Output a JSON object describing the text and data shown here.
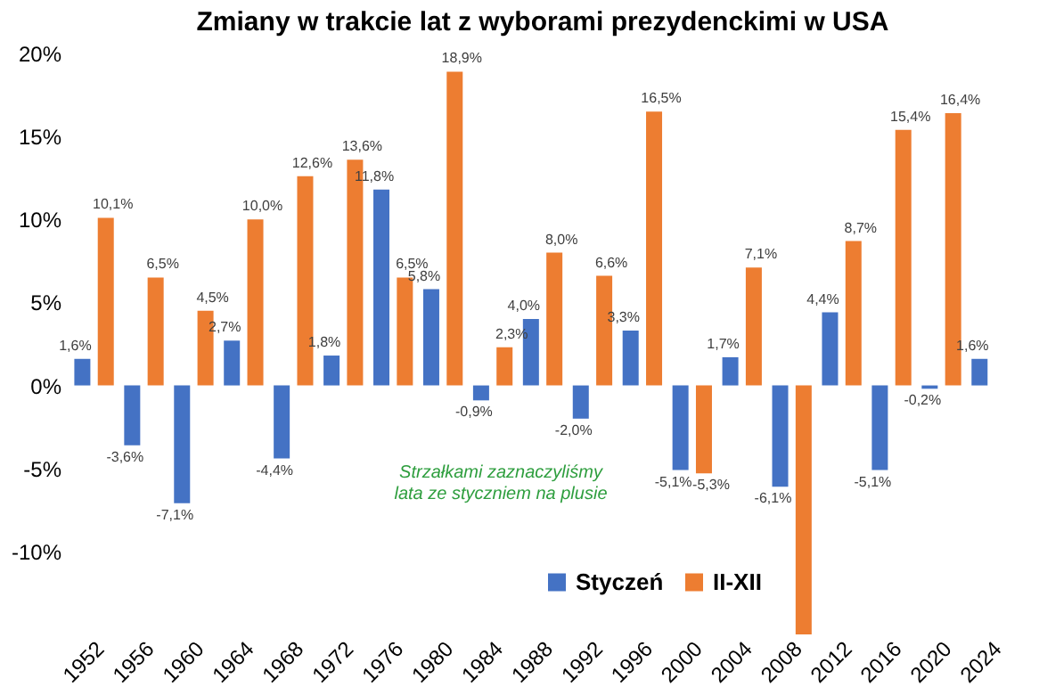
{
  "chart_data": {
    "type": "bar",
    "title": "Zmiany w trakcie lat z wyborami prezydenckimi w USA",
    "categories": [
      "1952",
      "1956",
      "1960",
      "1964",
      "1968",
      "1972",
      "1976",
      "1980",
      "1984",
      "1988",
      "1992",
      "1996",
      "2000",
      "2004",
      "2008",
      "2012",
      "2016",
      "2020",
      "2024"
    ],
    "series": [
      {
        "name": "Styczeń",
        "color": "#4472c4",
        "values": [
          1.6,
          -3.6,
          -7.1,
          2.7,
          -4.4,
          1.8,
          11.8,
          5.8,
          -0.9,
          4.0,
          -2.0,
          3.3,
          -5.1,
          1.7,
          -6.1,
          4.4,
          -5.1,
          -0.2,
          1.6
        ],
        "value_labels": [
          "1,6%",
          "-3,6%",
          "-7,1%",
          "2,7%",
          "-4,4%",
          "1,8%",
          "11,8%",
          "5,8%",
          "-0,9%",
          "4,0%",
          "-2,0%",
          "3,3%",
          "-5,1%",
          "1,7%",
          "-6,1%",
          "4,4%",
          "-5,1%",
          "-0,2%",
          "1,6%"
        ]
      },
      {
        "name": "II-XII",
        "color": "#ed7d31",
        "values": [
          10.1,
          6.5,
          4.5,
          10.0,
          12.6,
          13.6,
          6.5,
          18.9,
          2.3,
          8.0,
          6.6,
          16.5,
          -5.3,
          7.1,
          -15,
          8.7,
          15.4,
          16.4,
          null
        ],
        "value_labels": [
          "10,1%",
          "6,5%",
          "4,5%",
          "10,0%",
          "12,6%",
          "13,6%",
          "6,5%",
          "18,9%",
          "2,3%",
          "8,0%",
          "6,6%",
          "16,5%",
          "-5,3%",
          "7,1%",
          null,
          "8,7%",
          "15,4%",
          "16,4%",
          null
        ]
      }
    ],
    "ylim": [
      -15,
      20
    ],
    "yticks": [
      {
        "value": -10,
        "label": "-10%"
      },
      {
        "value": -5,
        "label": "-5%"
      },
      {
        "value": 0,
        "label": "0%"
      },
      {
        "value": 5,
        "label": "5%"
      },
      {
        "value": 10,
        "label": "10%"
      },
      {
        "value": 15,
        "label": "15%"
      },
      {
        "value": 20,
        "label": "20%"
      }
    ],
    "grid": false,
    "legend": "bottom",
    "annotations": [
      "Strzałkami zaznaczyliśmy\nlata ze styczniem na plusie"
    ]
  }
}
